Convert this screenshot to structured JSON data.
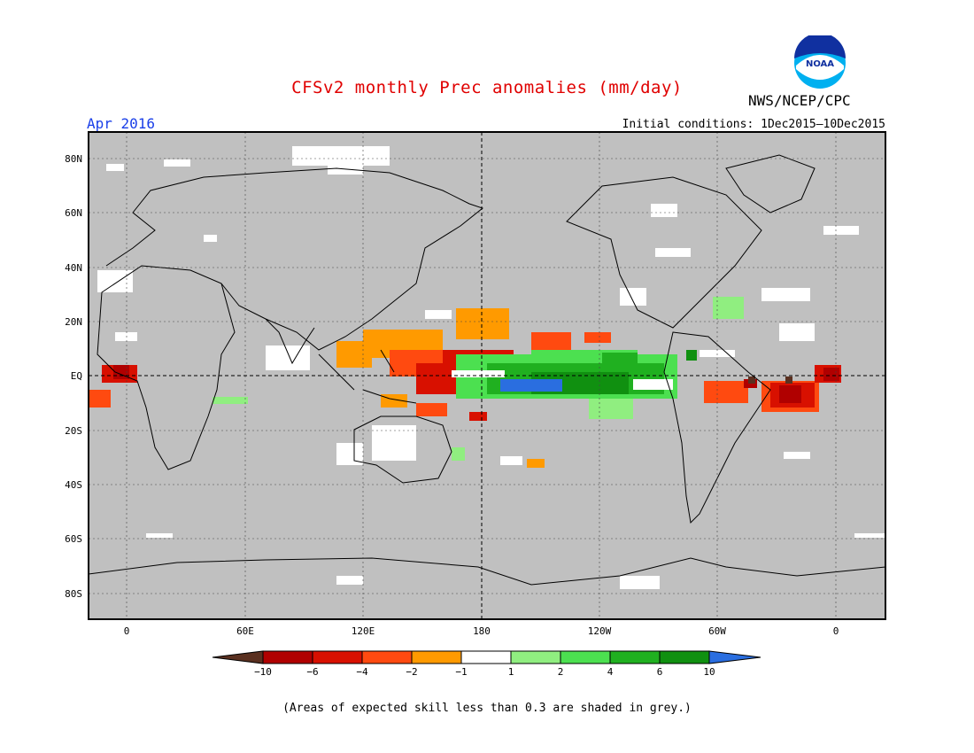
{
  "title": "CFSv2 monthly Prec anomalies (mm/day)",
  "agency": "NWS/NCEP/CPC",
  "logo_text": "NOAA",
  "valid_month": "Apr 2016",
  "initial_conditions": "Initial conditions: 1Dec2015—10Dec2015",
  "footnote": "(Areas of expected skill less than 0.3 are shaded in grey.)",
  "colors": {
    "grey_mask": "#c0c0c0",
    "ocean_land_lines": "#000000",
    "title": "#e00000",
    "month": "#1a3fe8"
  },
  "axes": {
    "lat_ticks": [
      "80N",
      "60N",
      "40N",
      "20N",
      "EQ",
      "20S",
      "40S",
      "60S",
      "80S"
    ],
    "lon_ticks": [
      "0",
      "60E",
      "120E",
      "180",
      "120W",
      "60W",
      "0"
    ]
  },
  "colorbar": {
    "labels": [
      "−10",
      "−6",
      "−4",
      "−2",
      "−1",
      "1",
      "2",
      "4",
      "6",
      "10"
    ],
    "colors": [
      "#5a3020",
      "#b00000",
      "#d81000",
      "#ff4a10",
      "#ff9a00",
      "#ffffff",
      "#90ee80",
      "#4ce050",
      "#20b020",
      "#109010",
      "#2a6ee0"
    ]
  }
}
